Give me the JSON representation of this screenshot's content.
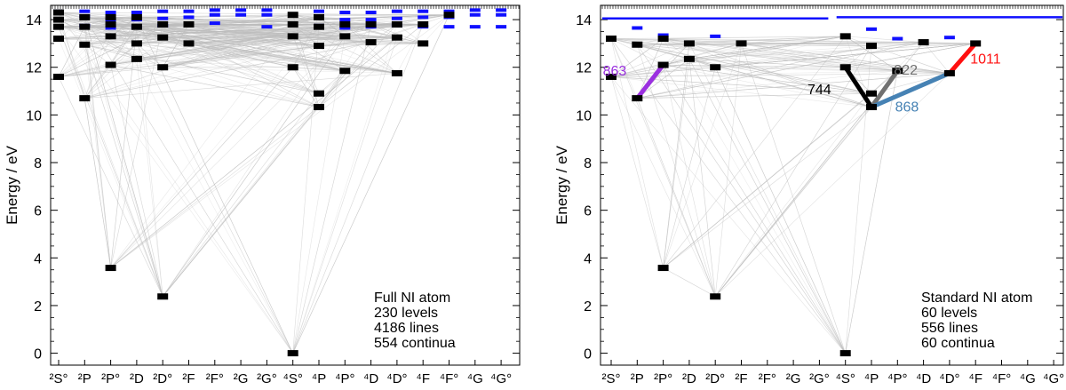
{
  "chart_data": [
    {
      "type": "level-diagram",
      "ylabel": "Energy / eV",
      "ylim": [
        -0.5,
        14.6
      ],
      "yticks": [
        0,
        2,
        4,
        6,
        8,
        10,
        12,
        14
      ],
      "categories": [
        "²S°",
        "²P",
        "²P°",
        "²D",
        "²D°",
        "²F",
        "²F°",
        "²G",
        "²G°",
        "⁴S°",
        "⁴P",
        "⁴P°",
        "⁴D",
        "⁴D°",
        "⁴F",
        "⁴F°",
        "⁴G",
        "⁴G°"
      ],
      "annotation_lines": [
        "Full NI atom",
        "230 levels",
        "4186 lines",
        "554 continua"
      ],
      "levels": [
        {
          "term": 0,
          "energy": 11.6
        },
        {
          "term": 0,
          "energy": 13.2
        },
        {
          "term": 0,
          "energy": 13.7
        },
        {
          "term": 0,
          "energy": 14.0
        },
        {
          "term": 0,
          "energy": 14.3
        },
        {
          "term": 1,
          "energy": 10.7
        },
        {
          "term": 1,
          "energy": 12.95
        },
        {
          "term": 1,
          "energy": 13.7
        },
        {
          "term": 1,
          "energy": 14.1
        },
        {
          "term": 2,
          "energy": 3.58
        },
        {
          "term": 2,
          "energy": 12.1
        },
        {
          "term": 2,
          "energy": 13.3
        },
        {
          "term": 2,
          "energy": 13.8
        },
        {
          "term": 2,
          "energy": 14.1
        },
        {
          "term": 3,
          "energy": 12.35
        },
        {
          "term": 3,
          "energy": 13.0
        },
        {
          "term": 3,
          "energy": 13.7
        },
        {
          "term": 3,
          "energy": 14.1
        },
        {
          "term": 4,
          "energy": 2.38
        },
        {
          "term": 4,
          "energy": 12.0
        },
        {
          "term": 4,
          "energy": 13.25
        },
        {
          "term": 4,
          "energy": 13.8
        },
        {
          "term": 5,
          "energy": 13.0
        },
        {
          "term": 5,
          "energy": 13.8
        },
        {
          "term": 9,
          "energy": 0.0
        },
        {
          "term": 9,
          "energy": 12.0
        },
        {
          "term": 9,
          "energy": 13.3
        },
        {
          "term": 9,
          "energy": 13.8
        },
        {
          "term": 9,
          "energy": 14.2
        },
        {
          "term": 10,
          "energy": 10.33
        },
        {
          "term": 10,
          "energy": 10.9
        },
        {
          "term": 10,
          "energy": 12.9
        },
        {
          "term": 10,
          "energy": 13.7
        },
        {
          "term": 10,
          "energy": 14.1
        },
        {
          "term": 11,
          "energy": 11.85
        },
        {
          "term": 11,
          "energy": 13.3
        },
        {
          "term": 11,
          "energy": 13.8
        },
        {
          "term": 12,
          "energy": 13.05
        },
        {
          "term": 12,
          "energy": 13.8
        },
        {
          "term": 13,
          "energy": 11.75
        },
        {
          "term": 13,
          "energy": 13.25
        },
        {
          "term": 13,
          "energy": 13.8
        },
        {
          "term": 14,
          "energy": 13.0
        },
        {
          "term": 14,
          "energy": 13.8
        },
        {
          "term": 15,
          "energy": 14.2
        }
      ],
      "continua_levels": [
        {
          "term": 0,
          "energy": 14.35
        },
        {
          "term": 1,
          "energy": 13.75
        },
        {
          "term": 1,
          "energy": 14.15
        },
        {
          "term": 1,
          "energy": 14.35
        },
        {
          "term": 2,
          "energy": 13.65
        },
        {
          "term": 2,
          "energy": 14.0
        },
        {
          "term": 2,
          "energy": 14.3
        },
        {
          "term": 3,
          "energy": 13.7
        },
        {
          "term": 3,
          "energy": 14.0
        },
        {
          "term": 3,
          "energy": 14.3
        },
        {
          "term": 4,
          "energy": 13.75
        },
        {
          "term": 4,
          "energy": 14.05
        },
        {
          "term": 4,
          "energy": 14.35
        },
        {
          "term": 5,
          "energy": 13.8
        },
        {
          "term": 5,
          "energy": 14.1
        },
        {
          "term": 5,
          "energy": 14.35
        },
        {
          "term": 6,
          "energy": 13.85
        },
        {
          "term": 6,
          "energy": 14.2
        },
        {
          "term": 6,
          "energy": 14.4
        },
        {
          "term": 7,
          "energy": 14.2
        },
        {
          "term": 7,
          "energy": 14.4
        },
        {
          "term": 8,
          "energy": 13.7
        },
        {
          "term": 8,
          "energy": 14.2
        },
        {
          "term": 8,
          "energy": 14.4
        },
        {
          "term": 10,
          "energy": 13.75
        },
        {
          "term": 10,
          "energy": 14.35
        },
        {
          "term": 11,
          "energy": 13.65
        },
        {
          "term": 11,
          "energy": 14.0
        },
        {
          "term": 11,
          "energy": 14.3
        },
        {
          "term": 12,
          "energy": 13.7
        },
        {
          "term": 12,
          "energy": 14.0
        },
        {
          "term": 12,
          "energy": 14.3
        },
        {
          "term": 13,
          "energy": 13.75
        },
        {
          "term": 13,
          "energy": 14.05
        },
        {
          "term": 13,
          "energy": 14.35
        },
        {
          "term": 14,
          "energy": 13.7
        },
        {
          "term": 14,
          "energy": 14.1
        },
        {
          "term": 14,
          "energy": 14.35
        },
        {
          "term": 15,
          "energy": 13.7
        },
        {
          "term": 15,
          "energy": 14.1
        },
        {
          "term": 15,
          "energy": 14.35
        },
        {
          "term": 16,
          "energy": 13.7
        },
        {
          "term": 16,
          "energy": 14.2
        },
        {
          "term": 16,
          "energy": 14.4
        },
        {
          "term": 17,
          "energy": 13.7
        },
        {
          "term": 17,
          "energy": 14.2
        },
        {
          "term": 17,
          "energy": 14.4
        }
      ],
      "highlighted_transitions": []
    },
    {
      "type": "level-diagram",
      "ylabel": "Energy / eV",
      "ylim": [
        -0.5,
        14.6
      ],
      "yticks": [
        0,
        2,
        4,
        6,
        8,
        10,
        12,
        14
      ],
      "categories": [
        "²S°",
        "²P",
        "²P°",
        "²D",
        "²D°",
        "²F",
        "²F°",
        "²G",
        "²G°",
        "⁴S°",
        "⁴P",
        "⁴P°",
        "⁴D",
        "⁴D°",
        "⁴F",
        "⁴F°",
        "⁴G",
        "⁴G°"
      ],
      "annotation_lines": [
        "Standard NI atom",
        "60 levels",
        "556 lines",
        "60 continua"
      ],
      "levels": [
        {
          "term": 0,
          "energy": 11.6
        },
        {
          "term": 0,
          "energy": 13.2
        },
        {
          "term": 1,
          "energy": 10.7
        },
        {
          "term": 1,
          "energy": 12.95
        },
        {
          "term": 2,
          "energy": 3.58
        },
        {
          "term": 2,
          "energy": 12.1
        },
        {
          "term": 2,
          "energy": 13.2
        },
        {
          "term": 3,
          "energy": 12.35
        },
        {
          "term": 3,
          "energy": 13.0
        },
        {
          "term": 4,
          "energy": 2.38
        },
        {
          "term": 4,
          "energy": 12.0
        },
        {
          "term": 5,
          "energy": 13.0
        },
        {
          "term": 9,
          "energy": 0.0
        },
        {
          "term": 9,
          "energy": 12.0
        },
        {
          "term": 9,
          "energy": 13.3
        },
        {
          "term": 10,
          "energy": 10.33
        },
        {
          "term": 10,
          "energy": 10.9
        },
        {
          "term": 10,
          "energy": 12.9
        },
        {
          "term": 11,
          "energy": 11.85
        },
        {
          "term": 12,
          "energy": 13.05
        },
        {
          "term": 13,
          "energy": 11.75
        },
        {
          "term": 14,
          "energy": 13.0
        }
      ],
      "continua_levels": [
        {
          "term": 1,
          "energy": 13.65
        },
        {
          "term": 2,
          "energy": 13.35
        },
        {
          "term": 4,
          "energy": 13.3
        },
        {
          "term": 10,
          "energy": 13.6
        },
        {
          "term": 11,
          "energy": 13.2
        },
        {
          "term": 13,
          "energy": 13.25
        }
      ],
      "continuum_bars": [
        {
          "from_term": 0,
          "to_term": 8,
          "energy": 14.05
        },
        {
          "from_term": 9,
          "to_term": 17,
          "energy": 14.1
        }
      ],
      "highlighted_transitions": [
        {
          "label": "863",
          "color": "#9b30e0",
          "from": {
            "term": 1,
            "energy": 10.7
          },
          "to": {
            "term": 2,
            "energy": 12.1
          }
        },
        {
          "label": "744",
          "color": "#000000",
          "from": {
            "term": 10,
            "energy": 10.33
          },
          "to": {
            "term": 9,
            "energy": 12.0
          }
        },
        {
          "label": "822",
          "color": "#707070",
          "from": {
            "term": 10,
            "energy": 10.33
          },
          "to": {
            "term": 11,
            "energy": 11.85
          }
        },
        {
          "label": "868",
          "color": "#4682b4",
          "from": {
            "term": 10,
            "energy": 10.33
          },
          "to": {
            "term": 13,
            "energy": 11.75
          }
        },
        {
          "label": "1011",
          "color": "#ff1010",
          "from": {
            "term": 13,
            "energy": 11.75
          },
          "to": {
            "term": 14,
            "energy": 13.0
          }
        }
      ]
    }
  ]
}
